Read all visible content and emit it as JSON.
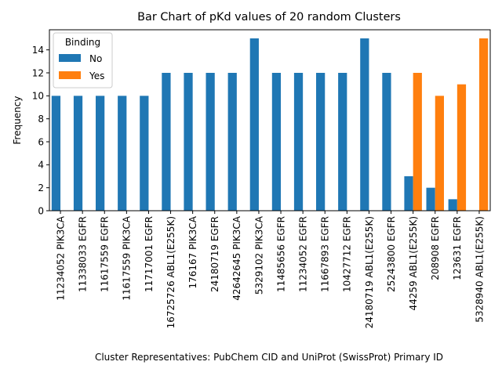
{
  "chart_data": {
    "type": "bar",
    "title": "Bar Chart of pKd values of 20 random Clusters",
    "xlabel": "Cluster Representatives: PubChem CID and UniProt (SwissProt) Primary ID",
    "ylabel": "Frequency",
    "ylim": [
      0,
      15.75
    ],
    "yticks": [
      0,
      2,
      4,
      6,
      8,
      10,
      12,
      14
    ],
    "grid": false,
    "legend": {
      "title": "Binding",
      "placement": "top-left"
    },
    "categories": [
      "11234052 PIK3CA",
      "11338033 EGFR",
      "11617559 EGFR",
      "11617559 PIK3CA",
      "11717001 EGFR",
      "16725726 ABL1(E255K)",
      "176167 PIK3CA",
      "24180719 EGFR",
      "42642645 PIK3CA",
      "5329102 PIK3CA",
      "11485656 EGFR",
      "11234052 EGFR",
      "11667893 EGFR",
      "10427712 EGFR",
      "24180719 ABL1(E255K)",
      "25243800 EGFR",
      "44259 ABL1(E255K)",
      "208908 EGFR",
      "123631 EGFR",
      "5328940 ABL1(E255K)"
    ],
    "series": [
      {
        "name": "No",
        "color": "#1f77b4",
        "values": [
          10,
          10,
          10,
          10,
          10,
          12,
          12,
          12,
          12,
          15,
          12,
          12,
          12,
          12,
          15,
          12,
          3,
          2,
          1,
          0
        ]
      },
      {
        "name": "Yes",
        "color": "#ff7f0e",
        "values": [
          0,
          0,
          0,
          0,
          0,
          0,
          0,
          0,
          0,
          0,
          0,
          0,
          0,
          0,
          0,
          0,
          12,
          10,
          11,
          15
        ]
      }
    ]
  }
}
